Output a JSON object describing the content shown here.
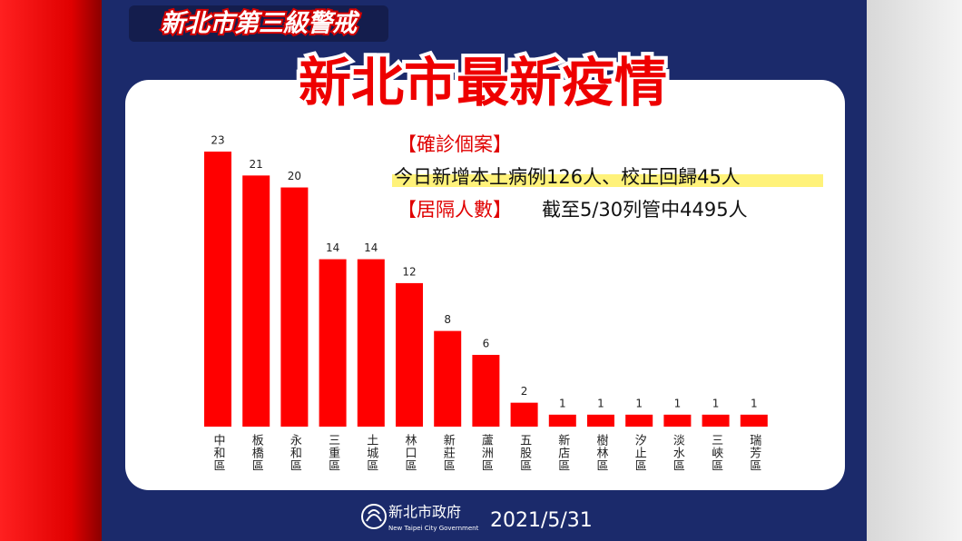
{
  "header": {
    "badge": "新北市第三級警戒",
    "title": "新北市最新疫情"
  },
  "info": {
    "case_heading": "【確診個案】",
    "case_text": "今日新增本土病例126人、校正回歸45人",
    "quarantine_heading": "【居隔人數】",
    "quarantine_text": "截至5/30列管中4495人"
  },
  "chart_data": {
    "type": "bar",
    "categories": [
      "中和區",
      "板橋區",
      "永和區",
      "三重區",
      "土城區",
      "林口區",
      "新莊區",
      "蘆洲區",
      "五股區",
      "新店區",
      "樹林區",
      "汐止區",
      "淡水區",
      "三峽區",
      "瑞芳區"
    ],
    "values": [
      23,
      21,
      20,
      14,
      14,
      12,
      8,
      6,
      2,
      1,
      1,
      1,
      1,
      1,
      1
    ],
    "color": "#ff0000"
  },
  "footer": {
    "org": "新北市政府",
    "org_en": "New Taipei City Government",
    "date": "2021/5/31"
  }
}
